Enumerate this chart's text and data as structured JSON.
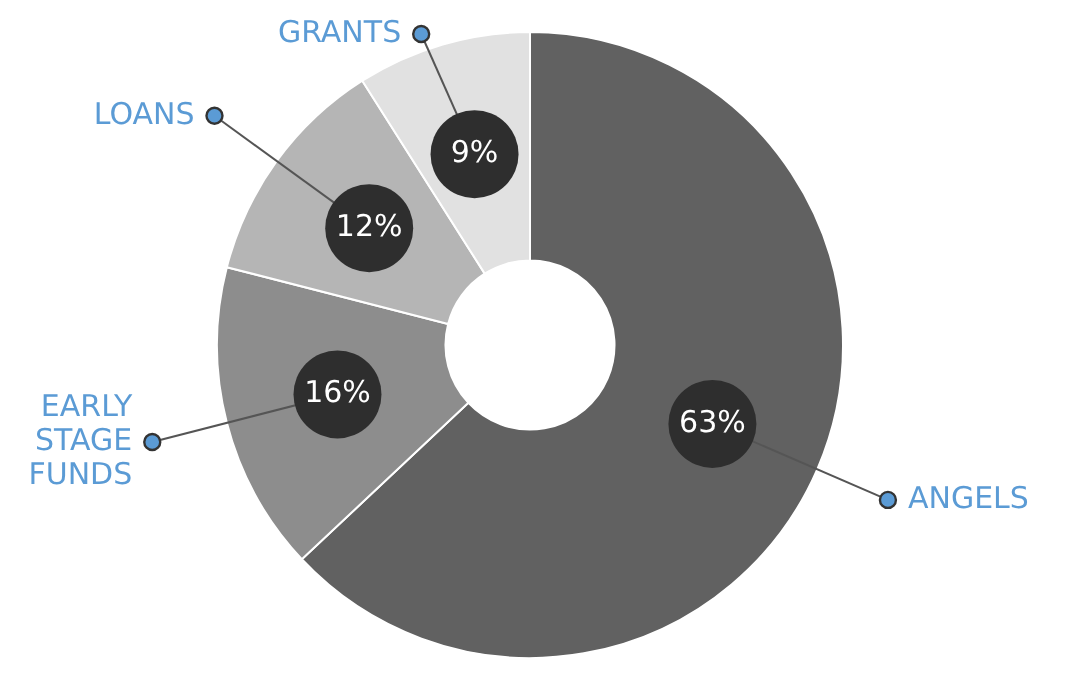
{
  "chart_data": {
    "type": "donut",
    "categories": [
      "ANGELS",
      "EARLY STAGE FUNDS",
      "LOANS",
      "GRANTS"
    ],
    "values": [
      63,
      16,
      12,
      9
    ],
    "colors": [
      "#616161",
      "#8d8d8d",
      "#b5b5b5",
      "#e1e1e1"
    ],
    "value_labels": [
      "63%",
      "16%",
      "12%",
      "9%"
    ],
    "legend": false
  }
}
